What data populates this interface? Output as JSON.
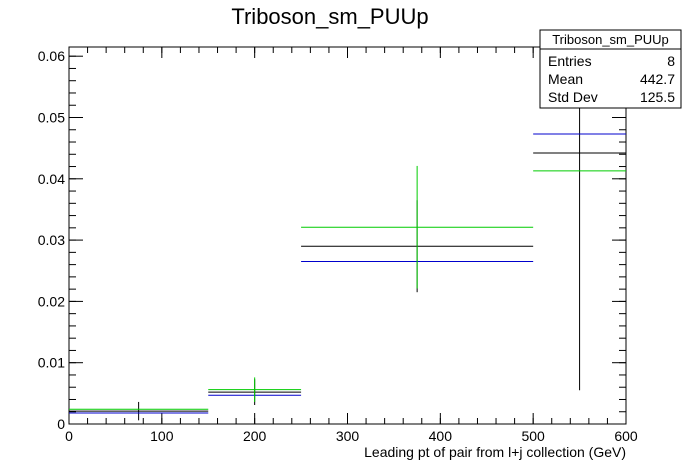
{
  "chart_data": {
    "type": "histogram",
    "title": "Triboson_sm_PUUp",
    "xlabel": "Leading pt of pair from l+j collection (GeV)",
    "ylabel": "",
    "xlim": [
      0,
      600
    ],
    "ylim": [
      0,
      0.0615
    ],
    "x_ticks": [
      0,
      100,
      200,
      300,
      400,
      500,
      600
    ],
    "y_ticks": [
      0,
      0.01,
      0.02,
      0.03,
      0.04,
      0.05,
      0.06
    ],
    "x_tick_labels": [
      "0",
      "100",
      "200",
      "300",
      "400",
      "500",
      "600"
    ],
    "y_tick_labels": [
      "0",
      "0.01",
      "0.02",
      "0.03",
      "0.04",
      "0.05",
      "0.06"
    ],
    "bins": [
      [
        0,
        150
      ],
      [
        150,
        250
      ],
      [
        250,
        500
      ],
      [
        500,
        600
      ]
    ],
    "series": [
      {
        "color": "#000000",
        "values": [
          0.0021,
          0.0052,
          0.029,
          0.0442
        ],
        "errors": [
          0.0015,
          0.0021,
          0.0075,
          0.0387
        ]
      },
      {
        "color": "#0000cc",
        "values": [
          0.0018,
          0.0047,
          0.0265,
          0.0473
        ]
      },
      {
        "color": "#00cc00",
        "values": [
          0.0024,
          0.0056,
          0.0321,
          0.0413
        ],
        "errors": [
          0,
          0.002,
          0.01,
          0
        ]
      }
    ],
    "stats_box": {
      "title": "Triboson_sm_PUUp",
      "rows": [
        {
          "label": "Entries",
          "value": "8"
        },
        {
          "label": "Mean",
          "value": "442.7"
        },
        {
          "label": "Std Dev",
          "value": "125.5"
        }
      ]
    }
  }
}
